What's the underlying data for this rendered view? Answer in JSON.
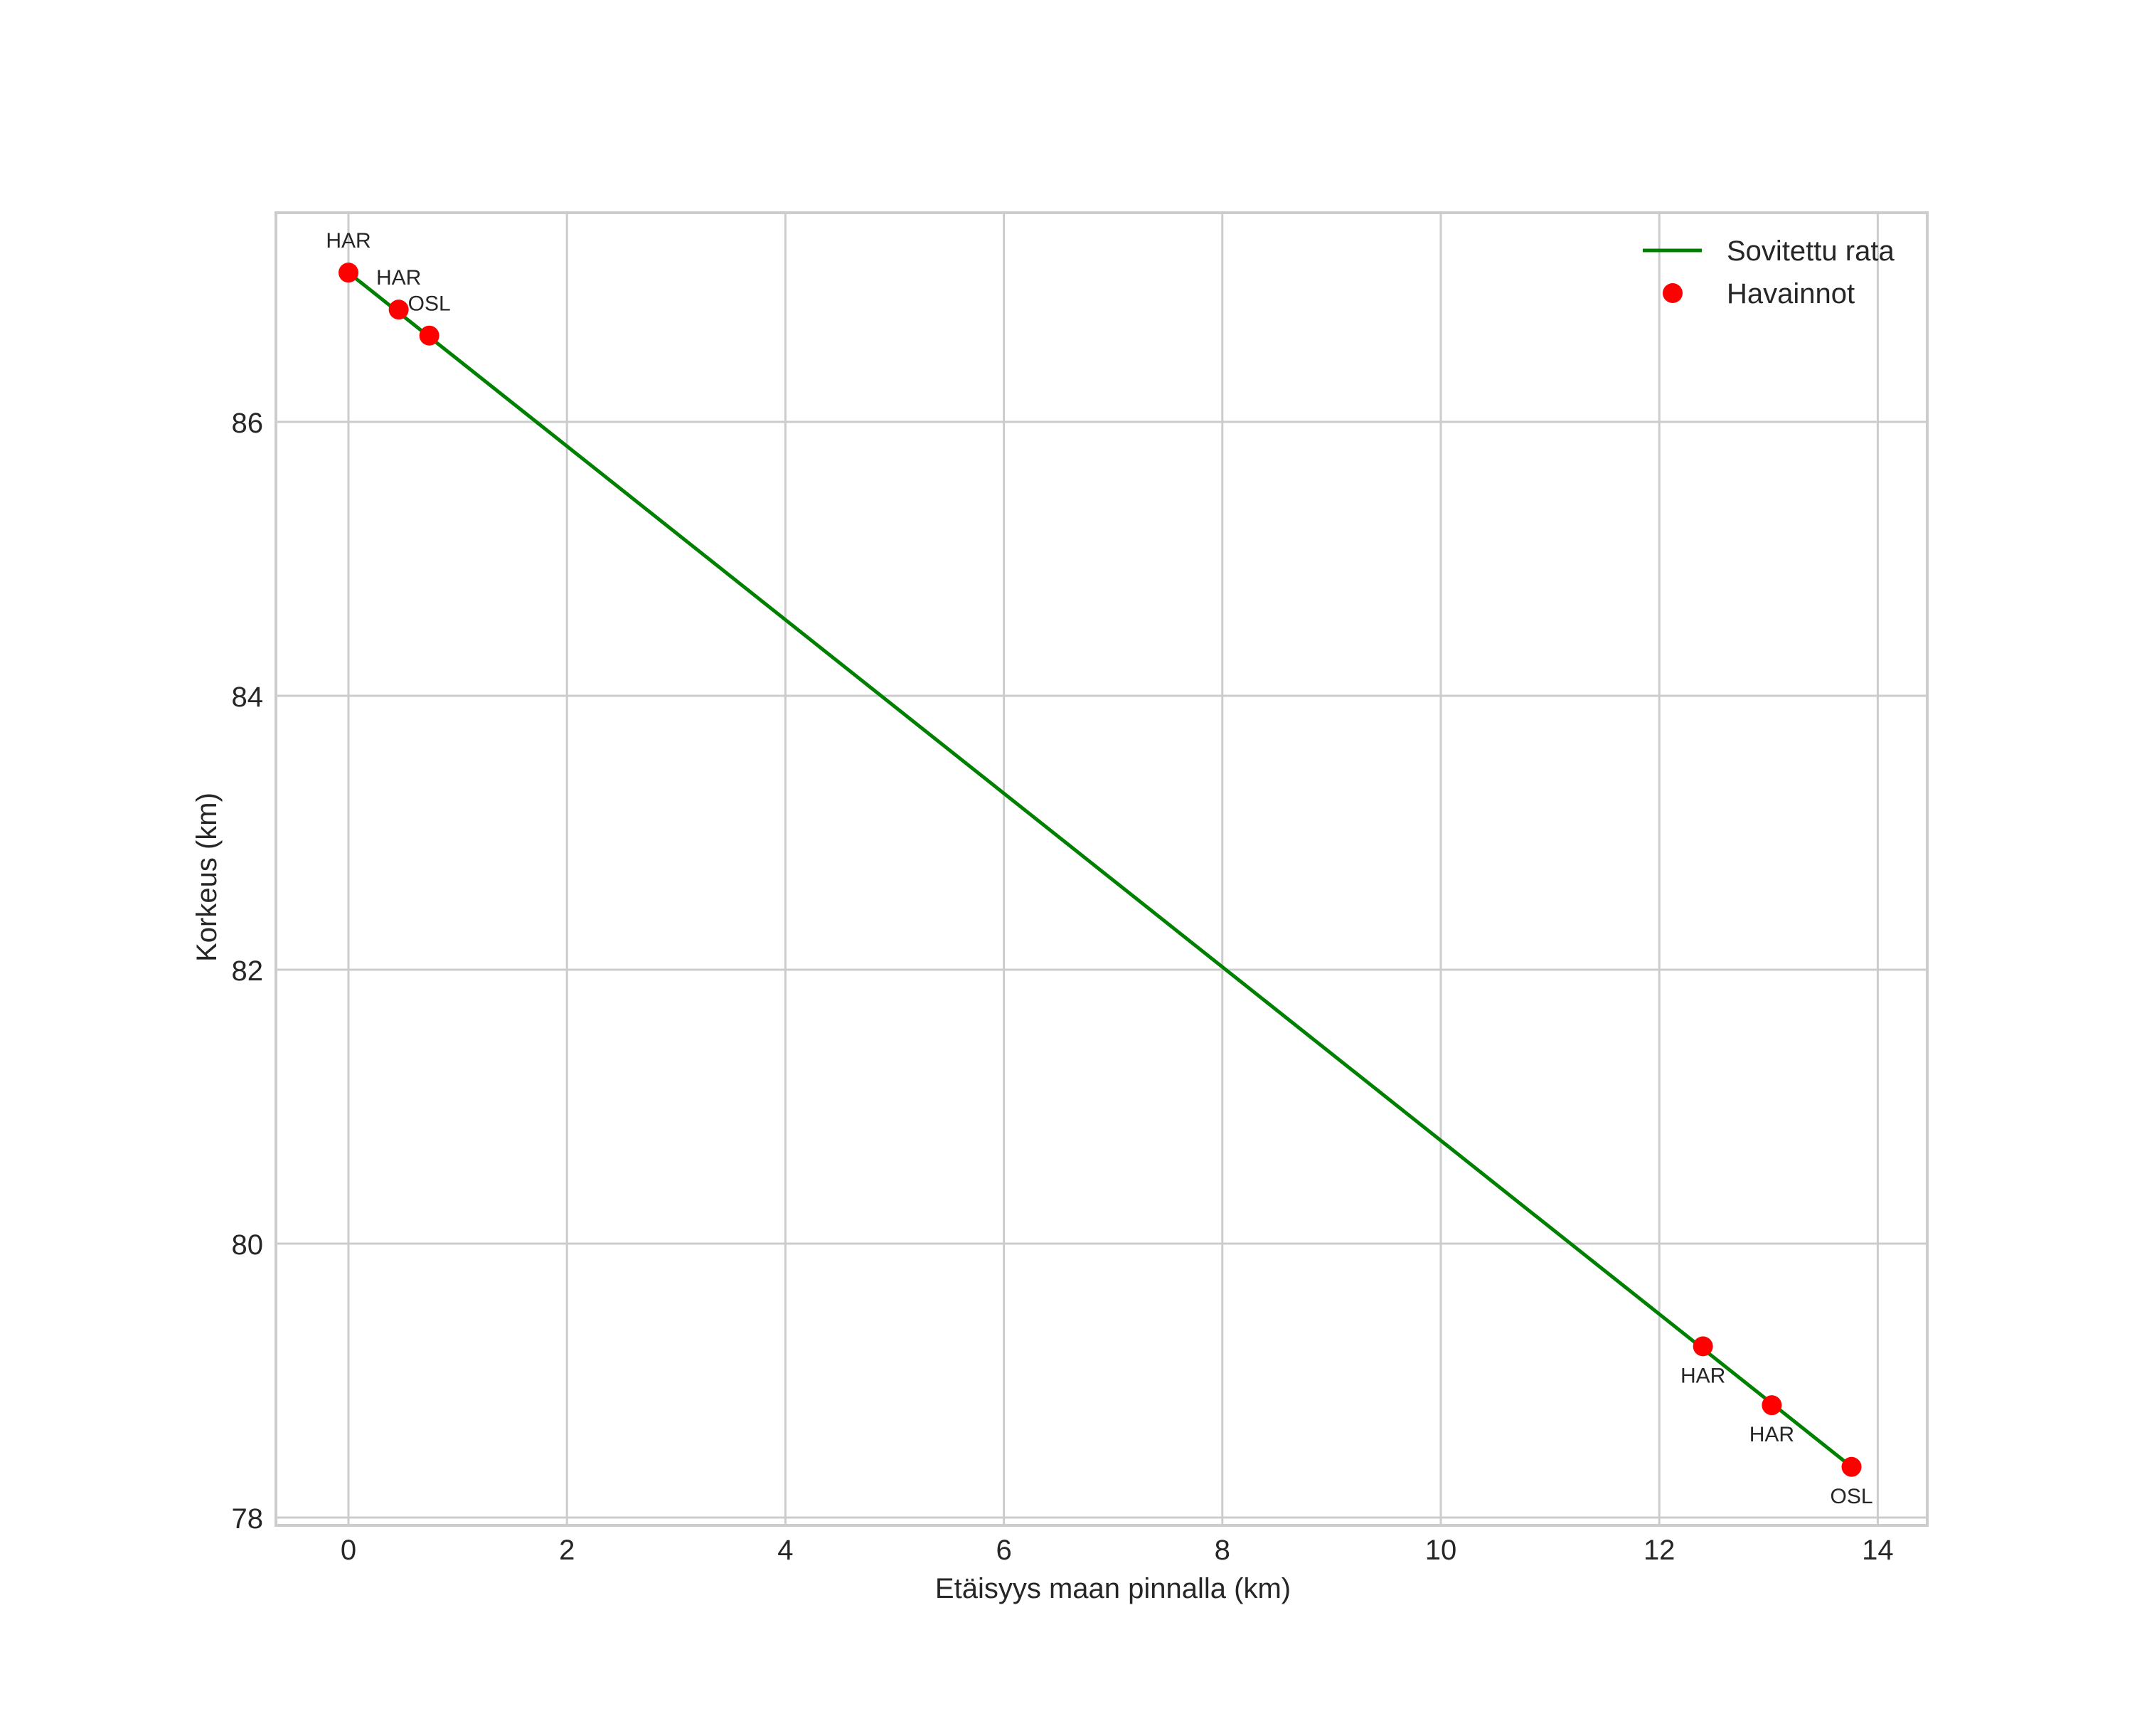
{
  "chart_data": {
    "type": "line",
    "title": "",
    "xlabel": "Etäisyys maan pinnalla (km)",
    "ylabel": "Korkeus (km)",
    "xlim": [
      -0.7,
      14.45
    ],
    "ylim": [
      77.95,
      87.51
    ],
    "grid": true,
    "legend_position": "upper right",
    "x_ticks": [
      0,
      2,
      4,
      6,
      8,
      10,
      12,
      14
    ],
    "x_tick_labels": [
      "0",
      "2",
      "4",
      "6",
      "8",
      "10",
      "12",
      "14"
    ],
    "y_ticks": [
      78,
      80,
      82,
      84,
      86
    ],
    "y_tick_labels": [
      "78",
      "80",
      "82",
      "84",
      "86"
    ],
    "legend": [
      {
        "label": "Sovitettu rata",
        "kind": "line",
        "color": "#008000"
      },
      {
        "label": "Havainnot",
        "kind": "marker",
        "color": "#ff0000"
      }
    ],
    "series": [
      {
        "name": "Sovitettu rata",
        "type": "line",
        "color": "#008000",
        "x": [
          0.0,
          13.76
        ],
        "y": [
          87.09,
          78.37
        ]
      },
      {
        "name": "Havainnot",
        "type": "scatter",
        "color": "#ff0000",
        "points": [
          {
            "x": 0.0,
            "y": 87.09,
            "label": "HAR",
            "label_pos": "above"
          },
          {
            "x": 0.46,
            "y": 86.82,
            "label": "HAR",
            "label_pos": "above"
          },
          {
            "x": 0.74,
            "y": 86.63,
            "label": "OSL",
            "label_pos": "above"
          },
          {
            "x": 12.4,
            "y": 79.25,
            "label": "HAR",
            "label_pos": "below"
          },
          {
            "x": 13.03,
            "y": 78.82,
            "label": "HAR",
            "label_pos": "below"
          },
          {
            "x": 13.76,
            "y": 78.37,
            "label": "OSL",
            "label_pos": "below"
          }
        ]
      }
    ]
  },
  "colors": {
    "line": "#008000",
    "marker": "#ff0000",
    "grid": "#cccccc",
    "text": "#262626",
    "background": "#ffffff"
  }
}
